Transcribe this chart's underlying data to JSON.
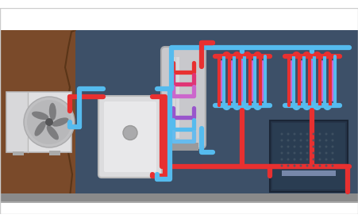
{
  "bg_color": "#3d5068",
  "wall_color": "#7a4a2a",
  "floor_color": "#8a8a8a",
  "red": "#e83030",
  "blue": "#55bbee",
  "purple": "#cc66cc",
  "pink": "#dd5599",
  "light_blue": "#88ccee",
  "boiler_color": "#d8d8da",
  "tank_color": "#c8c8cc",
  "unit_color": "#dcdcde",
  "shower_bg": "#2a3d52",
  "fan_bg": "#b8b8ba",
  "fan_dark": "#707072"
}
